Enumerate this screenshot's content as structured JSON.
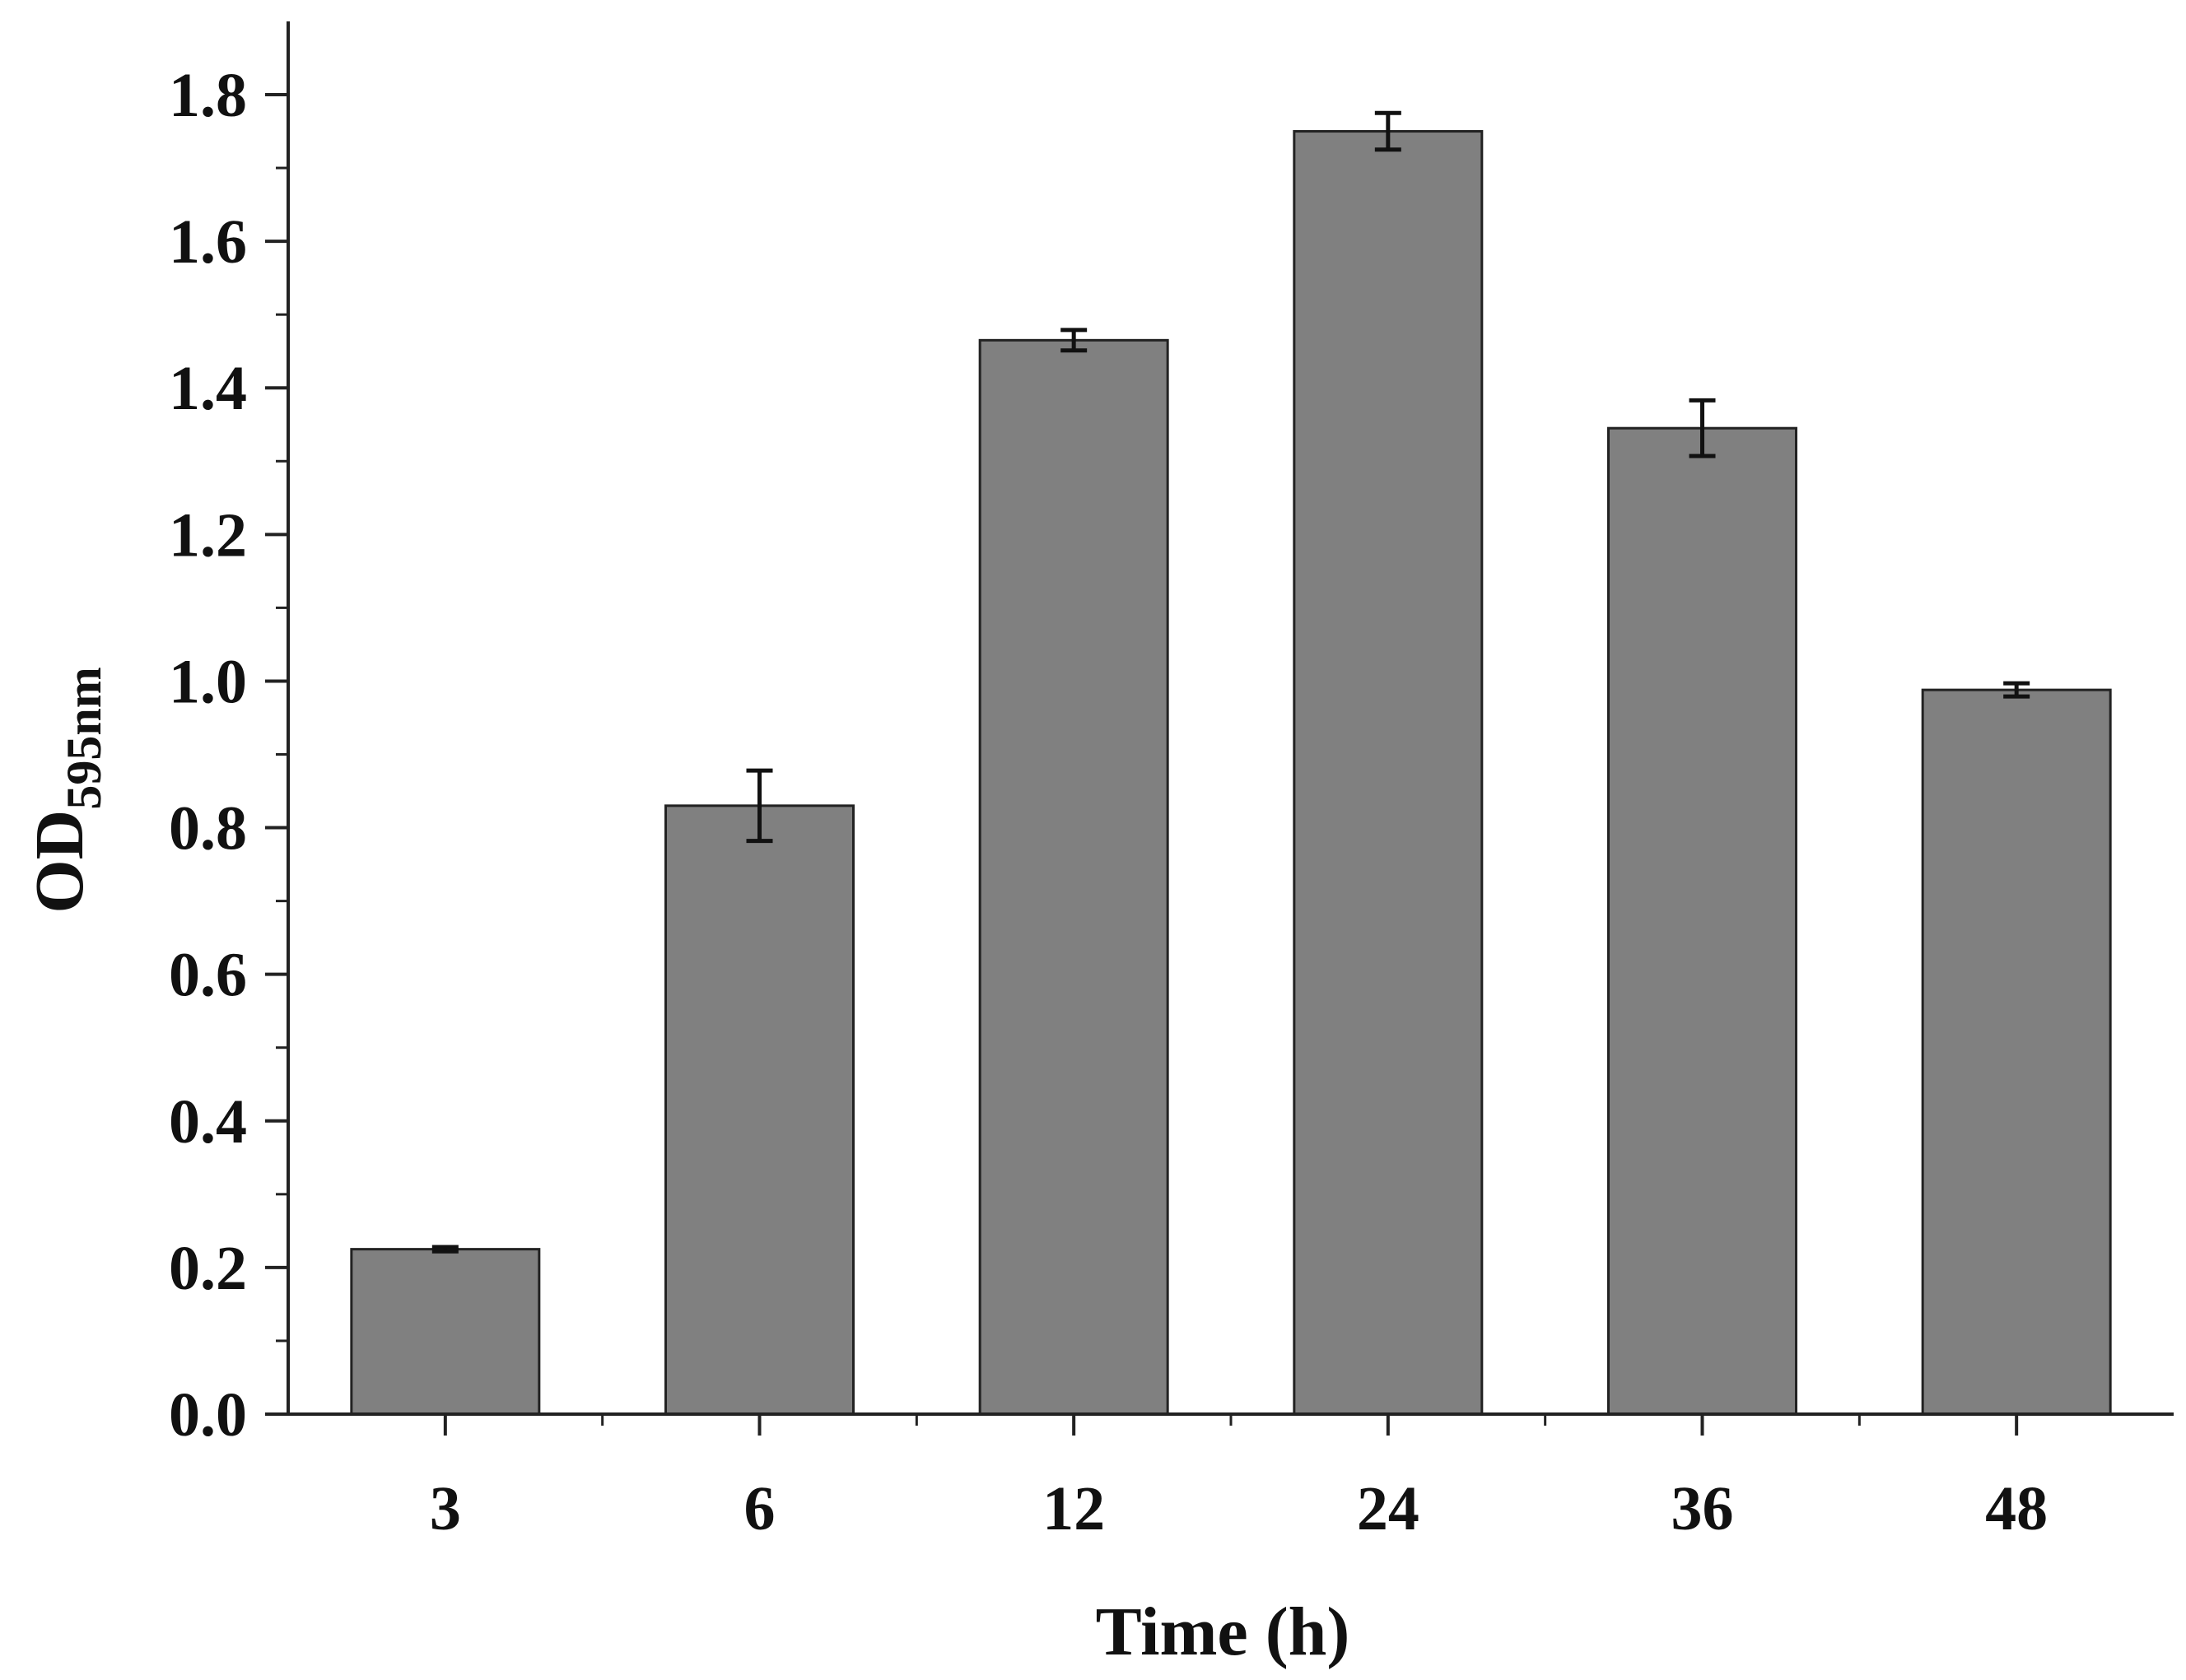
{
  "chart_data": {
    "type": "bar",
    "categories": [
      "3",
      "6",
      "12",
      "24",
      "36",
      "48"
    ],
    "values": [
      0.225,
      0.83,
      1.465,
      1.75,
      1.345,
      0.988
    ],
    "errors": [
      0.003,
      0.048,
      0.014,
      0.025,
      0.038,
      0.009
    ],
    "xlabel": "Time (h)",
    "ylabel": {
      "prefix": "OD",
      "subscript": "595nm"
    },
    "ylim": [
      0,
      1.9
    ],
    "yticks": [
      "0.0",
      "0.2",
      "0.4",
      "0.6",
      "0.8",
      "1.0",
      "1.2",
      "1.4",
      "1.6",
      "1.8"
    ],
    "grid": false,
    "colors": {
      "bar_fill": "#808080",
      "bar_edge": "#222222",
      "axis": "#222222",
      "error_bar": "#111111"
    }
  }
}
